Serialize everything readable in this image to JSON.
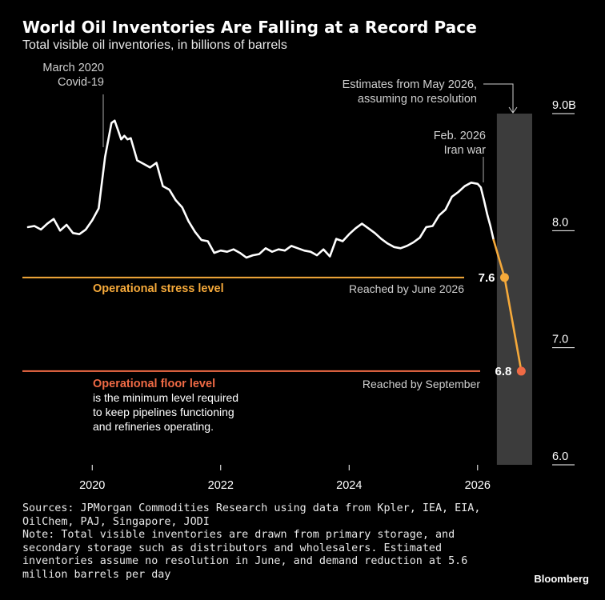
{
  "header": {
    "title": "World Oil Inventories Are Falling at a Record Pace",
    "subtitle": "Total visible oil inventories, in billions of barrels"
  },
  "chart_data": {
    "type": "line",
    "ylim": [
      6.0,
      9.0
    ],
    "xlim": [
      2019.0,
      2026.85
    ],
    "y_ticks": [
      {
        "value": 6.0,
        "label": "6.0"
      },
      {
        "value": 7.0,
        "label": "7.0"
      },
      {
        "value": 8.0,
        "label": "8.0"
      },
      {
        "value": 9.0,
        "label": "9.0B"
      }
    ],
    "x_ticks": [
      {
        "value": 2020,
        "label": "2020"
      },
      {
        "value": 2022,
        "label": "2022"
      },
      {
        "value": 2024,
        "label": "2024"
      },
      {
        "value": 2026,
        "label": "2026"
      }
    ],
    "forecast_band": {
      "from": 2026.3,
      "to": 2026.85,
      "color": "#3c3c3c"
    },
    "series": [
      {
        "role": "actual",
        "color": "#ffffff",
        "x": [
          2019.0,
          2019.1,
          2019.2,
          2019.3,
          2019.4,
          2019.5,
          2019.6,
          2019.7,
          2019.8,
          2019.9,
          2020.0,
          2020.1,
          2020.2,
          2020.3,
          2020.35,
          2020.4,
          2020.45,
          2020.5,
          2020.55,
          2020.6,
          2020.7,
          2020.8,
          2020.9,
          2021.0,
          2021.1,
          2021.2,
          2021.3,
          2021.4,
          2021.5,
          2021.6,
          2021.7,
          2021.8,
          2021.9,
          2022.0,
          2022.1,
          2022.2,
          2022.3,
          2022.4,
          2022.5,
          2022.6,
          2022.7,
          2022.8,
          2022.9,
          2023.0,
          2023.1,
          2023.2,
          2023.3,
          2023.4,
          2023.5,
          2023.6,
          2023.7,
          2023.8,
          2023.9,
          2024.0,
          2024.1,
          2024.2,
          2024.3,
          2024.4,
          2024.5,
          2024.6,
          2024.7,
          2024.8,
          2024.9,
          2025.0,
          2025.1,
          2025.2,
          2025.3,
          2025.4,
          2025.5,
          2025.6,
          2025.7,
          2025.8,
          2025.9,
          2026.0,
          2026.05,
          2026.1,
          2026.15,
          2026.2,
          2026.25
        ],
        "values": [
          8.03,
          8.04,
          8.01,
          8.06,
          8.1,
          8.0,
          8.05,
          7.98,
          7.97,
          8.01,
          8.09,
          8.19,
          8.63,
          8.92,
          8.94,
          8.86,
          8.78,
          8.81,
          8.78,
          8.79,
          8.6,
          8.57,
          8.54,
          8.58,
          8.38,
          8.35,
          8.26,
          8.2,
          8.08,
          7.99,
          7.92,
          7.91,
          7.81,
          7.83,
          7.82,
          7.84,
          7.81,
          7.77,
          7.79,
          7.8,
          7.85,
          7.82,
          7.84,
          7.83,
          7.87,
          7.85,
          7.83,
          7.82,
          7.79,
          7.84,
          7.78,
          7.93,
          7.91,
          7.97,
          8.02,
          8.06,
          8.02,
          7.98,
          7.93,
          7.89,
          7.86,
          7.85,
          7.87,
          7.9,
          7.94,
          8.03,
          8.04,
          8.13,
          8.18,
          8.29,
          8.33,
          8.38,
          8.41,
          8.4,
          8.37,
          8.26,
          8.14,
          8.04,
          7.92
        ]
      },
      {
        "role": "estimate",
        "color": "#f5a93a",
        "x": [
          2026.25,
          2026.42,
          2026.68
        ],
        "values": [
          7.92,
          7.6,
          6.8
        ]
      }
    ],
    "points": [
      {
        "x": 2026.42,
        "value": 7.6,
        "label": "7.6",
        "color": "#f5a93a"
      },
      {
        "x": 2026.68,
        "value": 6.8,
        "label": "6.8",
        "color": "#ef6a45"
      }
    ],
    "reference_lines": [
      {
        "value": 7.6,
        "color": "#f5a93a",
        "label": "Operational stress level",
        "note": "Reached by June 2026"
      },
      {
        "value": 6.8,
        "color": "#ef6a45",
        "label": "Operational floor level",
        "note": "Reached by September",
        "description": [
          "is the minimum level required",
          "to keep pipelines functioning",
          "and refineries operating."
        ]
      }
    ],
    "annotations": [
      {
        "lines": [
          "March 2020",
          "Covid-19"
        ],
        "x": 2020.2
      },
      {
        "lines": [
          "Feb. 2026",
          "Iran war"
        ],
        "x": 2026.05
      },
      {
        "lines": [
          "Estimates from May 2026,",
          "assuming no resolution"
        ],
        "x": 2026.55
      }
    ]
  },
  "footer": {
    "sources": "Sources: JPMorgan Commodities Research using data from Kpler, IEA, EIA,\nOilChem, PAJ, Singapore, JODI\nNote: Total visible inventories are drawn from primary storage, and\nsecondary storage such as distributors and wholesalers. Estimated\ninventories assume no resolution in June, and demand reduction at 5.6\nmillion barrels per day",
    "brand": "Bloomberg"
  }
}
